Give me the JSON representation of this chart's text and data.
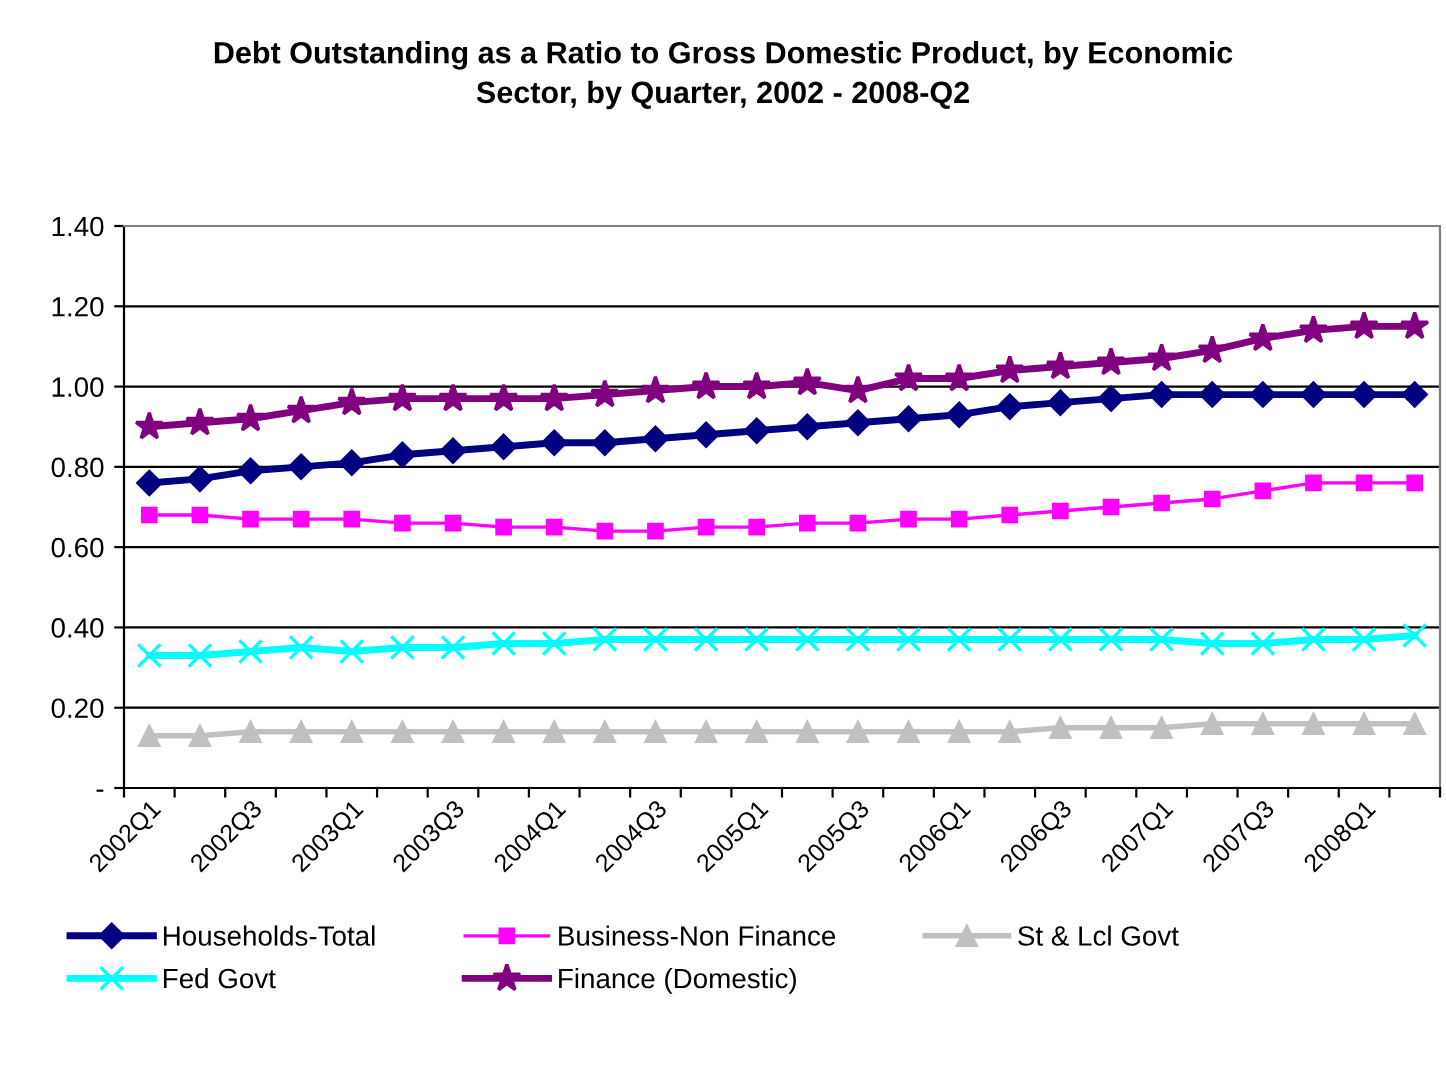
{
  "chart_data": {
    "type": "line",
    "title": "Debt Outstanding as a Ratio to Gross Domestic Product, by Economic Sector, by Quarter, 2002 - 2008-Q2",
    "categories": [
      "2002Q1",
      null,
      "2002Q3",
      null,
      "2003Q1",
      null,
      "2003Q3",
      null,
      "2004Q1",
      null,
      "2004Q3",
      null,
      "2005Q1",
      null,
      "2005Q3",
      null,
      "2006Q1",
      null,
      "2006Q3",
      null,
      "2007Q1",
      null,
      "2007Q3",
      null,
      "2008Q1",
      null
    ],
    "series": [
      {
        "name": "Households-Total",
        "color": "#000080",
        "marker": "diamond",
        "values": [
          0.76,
          0.77,
          0.79,
          0.8,
          0.81,
          0.83,
          0.84,
          0.85,
          0.86,
          0.86,
          0.87,
          0.88,
          0.89,
          0.9,
          0.91,
          0.92,
          0.93,
          0.95,
          0.96,
          0.97,
          0.98,
          0.98,
          0.98,
          0.98,
          0.98,
          0.98
        ]
      },
      {
        "name": "Business-Non Finance",
        "color": "#ff00ff",
        "marker": "square",
        "values": [
          0.68,
          0.68,
          0.67,
          0.67,
          0.67,
          0.66,
          0.66,
          0.65,
          0.65,
          0.64,
          0.64,
          0.65,
          0.65,
          0.66,
          0.66,
          0.67,
          0.67,
          0.68,
          0.69,
          0.7,
          0.71,
          0.72,
          0.74,
          0.76,
          0.76,
          0.76
        ]
      },
      {
        "name": "St & Lcl Govt",
        "color": "#c0c0c0",
        "marker": "triangle",
        "values": [
          0.13,
          0.13,
          0.14,
          0.14,
          0.14,
          0.14,
          0.14,
          0.14,
          0.14,
          0.14,
          0.14,
          0.14,
          0.14,
          0.14,
          0.14,
          0.14,
          0.14,
          0.14,
          0.15,
          0.15,
          0.15,
          0.16,
          0.16,
          0.16,
          0.16,
          0.16
        ]
      },
      {
        "name": "Fed Govt",
        "color": "#00ffff",
        "marker": "cross",
        "values": [
          0.33,
          0.33,
          0.34,
          0.35,
          0.34,
          0.35,
          0.35,
          0.36,
          0.36,
          0.37,
          0.37,
          0.37,
          0.37,
          0.37,
          0.37,
          0.37,
          0.37,
          0.37,
          0.37,
          0.37,
          0.37,
          0.36,
          0.36,
          0.37,
          0.37,
          0.38
        ]
      },
      {
        "name": "Finance (Domestic)",
        "color": "#800080",
        "marker": "star",
        "values": [
          0.9,
          0.91,
          0.92,
          0.94,
          0.96,
          0.97,
          0.97,
          0.97,
          0.97,
          0.98,
          0.99,
          1.0,
          1.0,
          1.01,
          0.99,
          1.02,
          1.02,
          1.04,
          1.05,
          1.06,
          1.07,
          1.09,
          1.12,
          1.14,
          1.15,
          1.15
        ]
      }
    ],
    "ylim": [
      0,
      1.4
    ],
    "yticks": [
      {
        "value": 0,
        "label": "-"
      },
      {
        "value": 0.2,
        "label": "0.20"
      },
      {
        "value": 0.4,
        "label": "0.40"
      },
      {
        "value": 0.6,
        "label": "0.60"
      },
      {
        "value": 0.8,
        "label": "0.80"
      },
      {
        "value": 1.0,
        "label": "1.00"
      },
      {
        "value": 1.2,
        "label": "1.20"
      },
      {
        "value": 1.4,
        "label": "1.40"
      }
    ],
    "grid": "y",
    "legend": "bottom"
  }
}
